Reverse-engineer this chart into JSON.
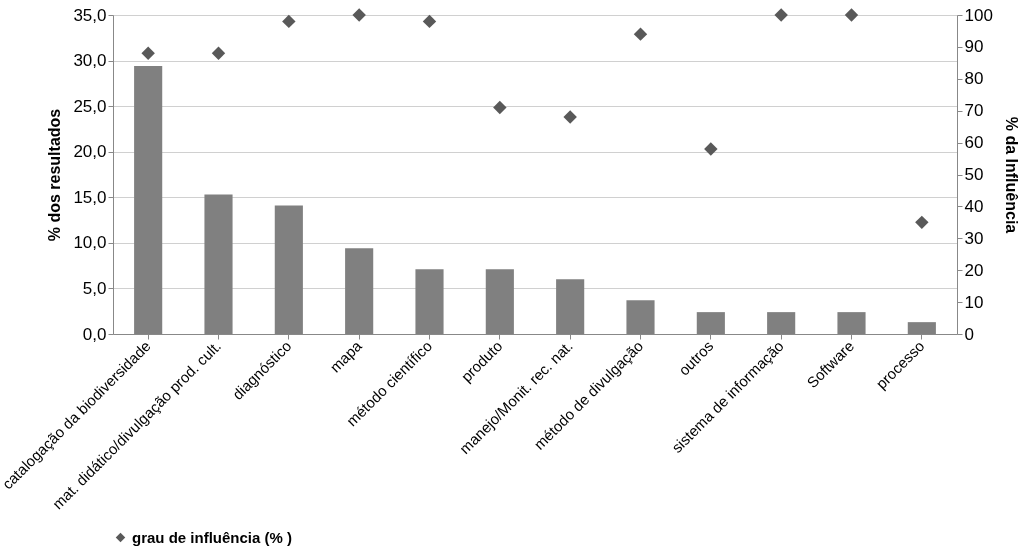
{
  "chart_data": {
    "type": "bar",
    "ylabel": "% dos resultados",
    "y2label": "% da Influência",
    "categories": [
      "catalogação da biodiversidade",
      "mat. didático/divulgação prod. cult.",
      "diagnóstico",
      "mapa",
      "método científico",
      "produto",
      "manejo/Monit. rec. nat.",
      "método de divulgação",
      "outros",
      "sistema de informação",
      "Software",
      "processo"
    ],
    "series": [
      {
        "color": "#808080",
        "values": [
          29.4,
          15.3,
          14.1,
          9.4,
          7.1,
          7.1,
          6.0,
          3.7,
          2.4,
          2.4,
          2.4,
          1.3
        ]
      },
      {
        "type": "scatter",
        "name": "grau de influência (% )",
        "axis": "y2",
        "marker": "diamond",
        "color": "#595959",
        "values": [
          88,
          88,
          98,
          100,
          98,
          71,
          68,
          94,
          58,
          100,
          100,
          35
        ]
      }
    ],
    "ylim": [
      0,
      35
    ],
    "yticks": [
      {
        "value": 0,
        "label": "0,0"
      },
      {
        "value": 5,
        "label": "5,0"
      },
      {
        "value": 10,
        "label": "10,0"
      },
      {
        "value": 15,
        "label": "15,0"
      },
      {
        "value": 20,
        "label": "20,0"
      },
      {
        "value": 25,
        "label": "25,0"
      },
      {
        "value": 30,
        "label": "30,0"
      },
      {
        "value": 35,
        "label": "35,0"
      }
    ],
    "y2lim": [
      0,
      100
    ],
    "y2ticks": [
      0,
      10,
      20,
      30,
      40,
      50,
      60,
      70,
      80,
      90,
      100
    ],
    "grid": "y",
    "legend": "bottom"
  }
}
